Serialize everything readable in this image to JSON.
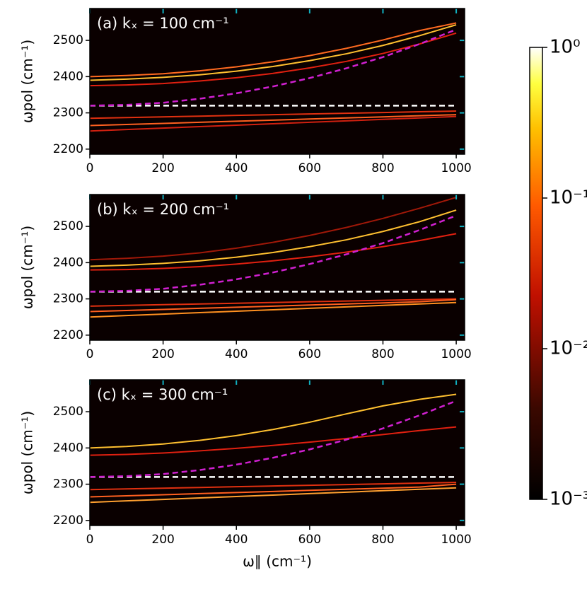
{
  "chart_data": [
    {
      "type": "line",
      "title": "(a) kₓ = 100 cm⁻¹",
      "ylabel": "ωpol (cm⁻¹)",
      "x": [
        0,
        100,
        200,
        300,
        400,
        500,
        600,
        700,
        800,
        900,
        1000
      ],
      "series": [
        {
          "color": "#ff6a20",
          "values": [
            2400,
            2403,
            2408,
            2416,
            2427,
            2441,
            2458,
            2478,
            2501,
            2527,
            2548
          ]
        },
        {
          "color": "#ffc030",
          "values": [
            2390,
            2393,
            2398,
            2405,
            2415,
            2428,
            2444,
            2463,
            2486,
            2513,
            2543
          ]
        },
        {
          "color": "#e02010",
          "values": [
            2375,
            2377,
            2381,
            2388,
            2397,
            2409,
            2424,
            2442,
            2464,
            2490,
            2520
          ]
        },
        {
          "color": "#e03010",
          "values": [
            2285,
            2287,
            2289,
            2291,
            2293,
            2295,
            2297,
            2299,
            2301,
            2303,
            2305
          ]
        },
        {
          "color": "#ff6020",
          "values": [
            2265,
            2268,
            2271,
            2274,
            2277,
            2280,
            2283,
            2286,
            2289,
            2292,
            2295
          ]
        },
        {
          "color": "#d02010",
          "values": [
            2250,
            2254,
            2258,
            2262,
            2266,
            2270,
            2274,
            2278,
            2282,
            2286,
            2290
          ]
        },
        {
          "color": "#ffffff",
          "dashed": true,
          "values": [
            2320,
            2320,
            2320,
            2320,
            2320,
            2320,
            2320,
            2320,
            2320,
            2320,
            2320
          ]
        },
        {
          "color": "#d020d0",
          "dashed": true,
          "values": [
            2320,
            2322,
            2328,
            2339,
            2354,
            2373,
            2396,
            2423,
            2454,
            2490,
            2530
          ]
        }
      ],
      "xlim": [
        0,
        1023
      ],
      "ylim": [
        2186,
        2588
      ],
      "xticks": [
        0,
        200,
        400,
        600,
        800,
        1000
      ],
      "yticks": [
        2200,
        2300,
        2400,
        2500
      ]
    },
    {
      "type": "line",
      "title": "(b) kₓ = 200 cm⁻¹",
      "ylabel": "ωpol (cm⁻¹)",
      "x": [
        0,
        100,
        200,
        300,
        400,
        500,
        600,
        700,
        800,
        900,
        1000
      ],
      "series": [
        {
          "color": "#a01808",
          "values": [
            2408,
            2412,
            2418,
            2427,
            2440,
            2456,
            2475,
            2497,
            2522,
            2550,
            2580
          ]
        },
        {
          "color": "#ffc030",
          "values": [
            2390,
            2393,
            2398,
            2405,
            2415,
            2428,
            2444,
            2463,
            2486,
            2513,
            2545
          ]
        },
        {
          "color": "#e02010",
          "values": [
            2380,
            2381,
            2384,
            2389,
            2396,
            2405,
            2416,
            2429,
            2444,
            2461,
            2480
          ]
        },
        {
          "color": "#e03010",
          "values": [
            2280,
            2282,
            2284,
            2286,
            2288,
            2290,
            2292,
            2294,
            2296,
            2298,
            2300
          ]
        },
        {
          "color": "#ff6020",
          "values": [
            2265,
            2268,
            2271,
            2274,
            2277,
            2280,
            2283,
            2286,
            2289,
            2292,
            2298
          ]
        },
        {
          "color": "#ff9020",
          "values": [
            2250,
            2254,
            2258,
            2262,
            2266,
            2270,
            2274,
            2278,
            2282,
            2286,
            2290
          ]
        },
        {
          "color": "#ffffff",
          "dashed": true,
          "values": [
            2320,
            2320,
            2320,
            2320,
            2320,
            2320,
            2320,
            2320,
            2320,
            2320,
            2320
          ]
        },
        {
          "color": "#d020d0",
          "dashed": true,
          "values": [
            2320,
            2322,
            2328,
            2339,
            2354,
            2373,
            2396,
            2423,
            2454,
            2490,
            2530
          ]
        }
      ],
      "xlim": [
        0,
        1023
      ],
      "ylim": [
        2186,
        2588
      ],
      "xticks": [
        0,
        200,
        400,
        600,
        800,
        1000
      ],
      "yticks": [
        2200,
        2300,
        2400,
        2500
      ]
    },
    {
      "type": "line",
      "title": "(c) kₓ = 300 cm⁻¹",
      "ylabel": "ωpol (cm⁻¹)",
      "xlabel": "ω∥ (cm⁻¹)",
      "x": [
        0,
        100,
        200,
        300,
        400,
        500,
        600,
        700,
        800,
        900,
        1000
      ],
      "series": [
        {
          "color": "#ffc030",
          "values": [
            2400,
            2404,
            2411,
            2421,
            2434,
            2451,
            2471,
            2494,
            2516,
            2534,
            2548
          ]
        },
        {
          "color": "#e02010",
          "values": [
            2380,
            2382,
            2386,
            2392,
            2399,
            2407,
            2416,
            2426,
            2437,
            2448,
            2458
          ]
        },
        {
          "color": "#e03010",
          "values": [
            2285,
            2287,
            2289,
            2291,
            2293,
            2295,
            2297,
            2299,
            2301,
            2303,
            2305
          ]
        },
        {
          "color": "#ff6020",
          "values": [
            2265,
            2268,
            2271,
            2274,
            2277,
            2280,
            2283,
            2286,
            2289,
            2292,
            2300
          ]
        },
        {
          "color": "#ffa030",
          "values": [
            2250,
            2254,
            2258,
            2262,
            2266,
            2270,
            2274,
            2278,
            2282,
            2286,
            2290
          ]
        },
        {
          "color": "#ffffff",
          "dashed": true,
          "values": [
            2320,
            2320,
            2320,
            2320,
            2320,
            2320,
            2320,
            2320,
            2320,
            2320,
            2320
          ]
        },
        {
          "color": "#d020d0",
          "dashed": true,
          "values": [
            2320,
            2322,
            2328,
            2339,
            2354,
            2373,
            2396,
            2423,
            2454,
            2490,
            2530
          ]
        }
      ],
      "xlim": [
        0,
        1023
      ],
      "ylim": [
        2186,
        2588
      ],
      "xticks": [
        0,
        200,
        400,
        600,
        800,
        1000
      ],
      "yticks": [
        2200,
        2300,
        2400,
        2500
      ]
    }
  ],
  "colorbar": {
    "log": true,
    "lim": [
      0.001,
      1
    ],
    "ticks": [
      {
        "value": 1,
        "label": "10⁰"
      },
      {
        "value": 0.1,
        "label": "10⁻¹"
      },
      {
        "value": 0.01,
        "label": "10⁻²"
      },
      {
        "value": 0.001,
        "label": "10⁻³"
      }
    ]
  }
}
